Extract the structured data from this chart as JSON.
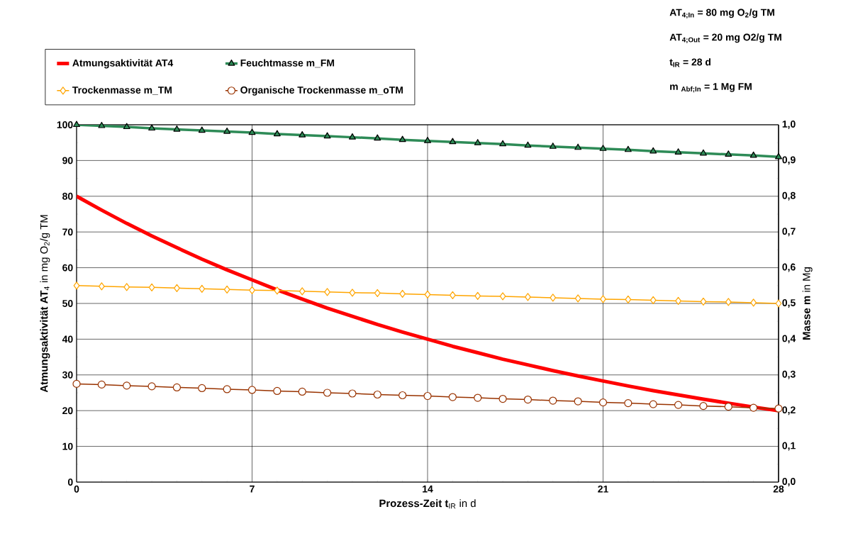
{
  "chart_data": {
    "type": "line",
    "x": [
      0,
      1,
      2,
      3,
      4,
      5,
      6,
      7,
      8,
      9,
      10,
      11,
      12,
      13,
      14,
      15,
      16,
      17,
      18,
      19,
      20,
      21,
      22,
      23,
      24,
      25,
      26,
      27,
      28
    ],
    "xlabel": "**Prozess-Zeit  t**$_{IR}$  in d",
    "ylabel": "**Atmungsaktivität  AT**$_{4}$  in  mg O$_{2}$/g TM",
    "y2label": "**Masse  m**  in Mg",
    "xlim": [
      0,
      28
    ],
    "xticks": [
      0,
      7,
      14,
      21,
      28
    ],
    "ylim": [
      0,
      100
    ],
    "yticks": [
      0,
      10,
      20,
      30,
      40,
      50,
      60,
      70,
      80,
      90,
      100
    ],
    "y2lim": [
      0,
      1
    ],
    "y2ticks": [
      {
        "value": 0,
        "label": "0,0"
      },
      {
        "value": 0.1,
        "label": "0,1"
      },
      {
        "value": 0.2,
        "label": "0,2"
      },
      {
        "value": 0.3,
        "label": "0,3"
      },
      {
        "value": 0.4,
        "label": "0,4"
      },
      {
        "value": 0.5,
        "label": "0,5"
      },
      {
        "value": 0.6,
        "label": "0,6"
      },
      {
        "value": 0.7,
        "label": "0,7"
      },
      {
        "value": 0.8,
        "label": "0,8"
      },
      {
        "value": 0.9,
        "label": "0,9"
      },
      {
        "value": 1.0,
        "label": "1,0"
      }
    ],
    "grid": true,
    "legend": "top",
    "series": [
      {
        "name": "Atmungsaktivität  AT4",
        "color": "#ff0000",
        "axis": "y",
        "marker": "none",
        "values": [
          80,
          76.1,
          72.4,
          68.9,
          65.6,
          62.4,
          59.4,
          56.6,
          53.8,
          51.2,
          48.7,
          46.4,
          44.1,
          42.0,
          40.0,
          38.0,
          36.2,
          34.4,
          32.8,
          31.2,
          29.7,
          28.3,
          26.9,
          25.6,
          24.4,
          23.2,
          22.1,
          21.0,
          20.0
        ]
      },
      {
        "name": "Feuchtmasse  m_FM",
        "color": "#2e8b57",
        "axis": "y2",
        "marker": "triangle",
        "values": [
          1.0,
          0.997,
          0.994,
          0.99,
          0.987,
          0.984,
          0.981,
          0.978,
          0.974,
          0.971,
          0.968,
          0.965,
          0.962,
          0.958,
          0.955,
          0.952,
          0.949,
          0.946,
          0.942,
          0.939,
          0.936,
          0.933,
          0.93,
          0.926,
          0.923,
          0.92,
          0.917,
          0.914,
          0.91
        ]
      },
      {
        "name": "Trockenmasse  m_TM",
        "color": "#ffa500",
        "axis": "y2",
        "marker": "diamond",
        "values": [
          0.55,
          0.548,
          0.546,
          0.545,
          0.543,
          0.541,
          0.539,
          0.537,
          0.536,
          0.534,
          0.532,
          0.53,
          0.529,
          0.527,
          0.525,
          0.523,
          0.521,
          0.52,
          0.518,
          0.516,
          0.514,
          0.512,
          0.511,
          0.509,
          0.507,
          0.505,
          0.504,
          0.502,
          0.5
        ]
      },
      {
        "name": "Organische Trockenmasse  m_oTM",
        "color": "#993300",
        "axis": "y2",
        "marker": "circle",
        "values": [
          0.275,
          0.273,
          0.27,
          0.268,
          0.265,
          0.263,
          0.26,
          0.258,
          0.255,
          0.253,
          0.25,
          0.248,
          0.245,
          0.243,
          0.241,
          0.238,
          0.236,
          0.233,
          0.231,
          0.228,
          0.226,
          0.223,
          0.221,
          0.218,
          0.216,
          0.213,
          0.211,
          0.208,
          0.206
        ]
      }
    ],
    "annotations": [
      "AT$_{4;In}$  =  80  mg O$_{2}$/g TM",
      "AT$_{4;Out}$  =  20  mg O2/g TM",
      "t$_{IR}$  =  28  d",
      "m $_{Abf;In}$  =  1  Mg FM"
    ]
  }
}
